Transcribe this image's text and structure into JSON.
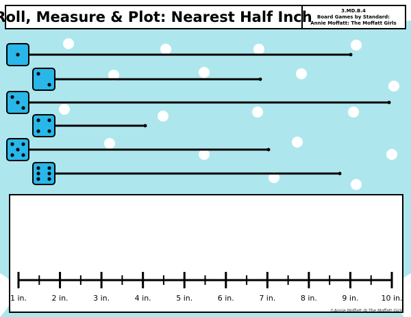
{
  "header": {
    "title": "Roll, Measure & Plot: Nearest Half Inch",
    "standard": [
      "3.MD.B.4",
      "Board Games by Standard:",
      "Annie Moffatt: The Moffatt Girls"
    ]
  },
  "dice": [
    1,
    2,
    3,
    4,
    5,
    6
  ],
  "ruler": {
    "labels": [
      "1 in.",
      "2 in.",
      "3 in.",
      "4 in.",
      "5 in.",
      "6 in.",
      "7 in.",
      "8 in.",
      "9 in.",
      "10 in."
    ]
  },
  "footer": {
    "copyright": "©Annie Moffatt @ The Moffatt Girls"
  }
}
